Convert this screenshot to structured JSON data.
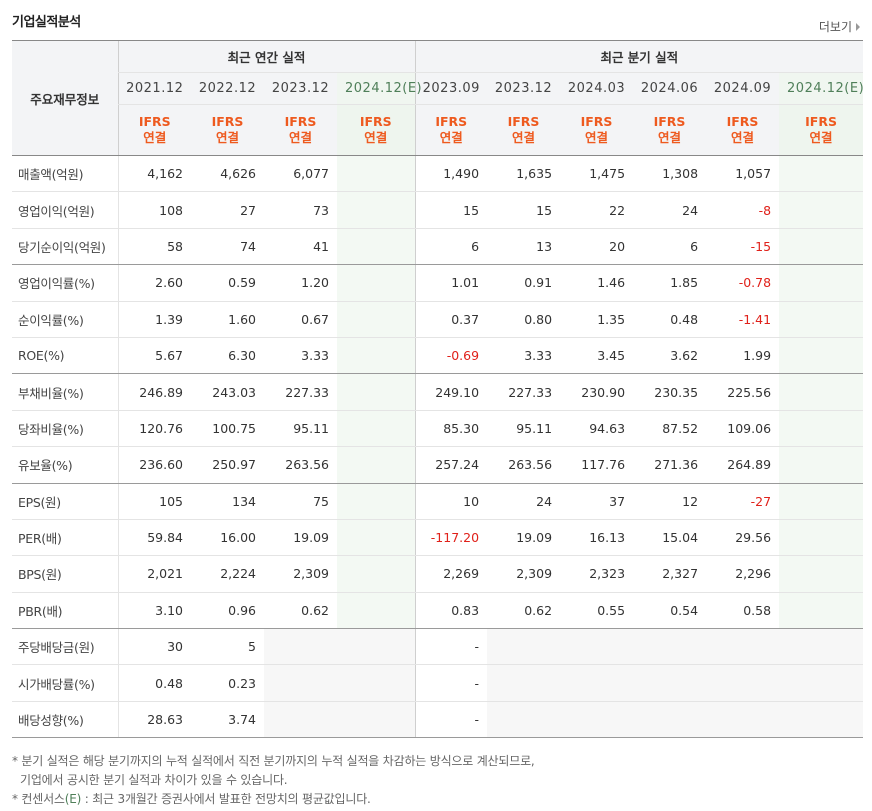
{
  "title": "기업실적분석",
  "more_label": "더보기",
  "header": {
    "corner": "주요재무정보",
    "annual_group": "최근 연간 실적",
    "quarter_group": "최근 분기 실적",
    "annual_periods": [
      "2021.12",
      "2022.12",
      "2023.12",
      "2024.12(E)"
    ],
    "quarter_periods": [
      "2023.09",
      "2023.12",
      "2024.03",
      "2024.06",
      "2024.09",
      "2024.12(E)"
    ],
    "ifrs_top": "IFRS",
    "ifrs_bottom": "연결"
  },
  "rows": [
    {
      "label": "매출액(억원)",
      "annual": [
        "4,162",
        "4,626",
        "6,077",
        ""
      ],
      "quarter": [
        "1,490",
        "1,635",
        "1,475",
        "1,308",
        "1,057",
        ""
      ]
    },
    {
      "label": "영업이익(억원)",
      "annual": [
        "108",
        "27",
        "73",
        ""
      ],
      "quarter": [
        "15",
        "15",
        "22",
        "24",
        "-8",
        ""
      ]
    },
    {
      "label": "당기순이익(억원)",
      "annual": [
        "58",
        "74",
        "41",
        ""
      ],
      "quarter": [
        "6",
        "13",
        "20",
        "6",
        "-15",
        ""
      ]
    },
    {
      "label": "영업이익률(%)",
      "annual": [
        "2.60",
        "0.59",
        "1.20",
        ""
      ],
      "quarter": [
        "1.01",
        "0.91",
        "1.46",
        "1.85",
        "-0.78",
        ""
      ]
    },
    {
      "label": "순이익률(%)",
      "annual": [
        "1.39",
        "1.60",
        "0.67",
        ""
      ],
      "quarter": [
        "0.37",
        "0.80",
        "1.35",
        "0.48",
        "-1.41",
        ""
      ]
    },
    {
      "label": "ROE(%)",
      "annual": [
        "5.67",
        "6.30",
        "3.33",
        ""
      ],
      "quarter": [
        "-0.69",
        "3.33",
        "3.45",
        "3.62",
        "1.99",
        ""
      ]
    },
    {
      "label": "부채비율(%)",
      "annual": [
        "246.89",
        "243.03",
        "227.33",
        ""
      ],
      "quarter": [
        "249.10",
        "227.33",
        "230.90",
        "230.35",
        "225.56",
        ""
      ]
    },
    {
      "label": "당좌비율(%)",
      "annual": [
        "120.76",
        "100.75",
        "95.11",
        ""
      ],
      "quarter": [
        "85.30",
        "95.11",
        "94.63",
        "87.52",
        "109.06",
        ""
      ]
    },
    {
      "label": "유보율(%)",
      "annual": [
        "236.60",
        "250.97",
        "263.56",
        ""
      ],
      "quarter": [
        "257.24",
        "263.56",
        "117.76",
        "271.36",
        "264.89",
        ""
      ]
    },
    {
      "label": "EPS(원)",
      "annual": [
        "105",
        "134",
        "75",
        ""
      ],
      "quarter": [
        "10",
        "24",
        "37",
        "12",
        "-27",
        ""
      ]
    },
    {
      "label": "PER(배)",
      "annual": [
        "59.84",
        "16.00",
        "19.09",
        ""
      ],
      "quarter": [
        "-117.20",
        "19.09",
        "16.13",
        "15.04",
        "29.56",
        ""
      ]
    },
    {
      "label": "BPS(원)",
      "annual": [
        "2,021",
        "2,224",
        "2,309",
        ""
      ],
      "quarter": [
        "2,269",
        "2,309",
        "2,323",
        "2,327",
        "2,296",
        ""
      ]
    },
    {
      "label": "PBR(배)",
      "annual": [
        "3.10",
        "0.96",
        "0.62",
        ""
      ],
      "quarter": [
        "0.83",
        "0.62",
        "0.55",
        "0.54",
        "0.58",
        ""
      ]
    },
    {
      "label": "주당배당금(원)",
      "annual": [
        "30",
        "5",
        "",
        ""
      ],
      "quarter": [
        "-",
        "",
        "",
        "",
        "",
        ""
      ]
    },
    {
      "label": "시가배당률(%)",
      "annual": [
        "0.48",
        "0.23",
        "",
        ""
      ],
      "quarter": [
        "-",
        "",
        "",
        "",
        "",
        ""
      ]
    },
    {
      "label": "배당성향(%)",
      "annual": [
        "28.63",
        "3.74",
        "",
        ""
      ],
      "quarter": [
        "-",
        "",
        "",
        "",
        "",
        ""
      ]
    }
  ],
  "notes": [
    "* 분기 실적은 해당 분기까지의 누적 실적에서 직전 분기까지의 누적 실적을 차감하는 방식으로 계산되므로,",
    "기업에서 공시한 분기 실적과 차이가 있을 수 있습니다.",
    "* 컨센서스",
    "(E)",
    " : 최근 3개월간 증권사에서 발표한 전망치의 평균값입니다."
  ]
}
